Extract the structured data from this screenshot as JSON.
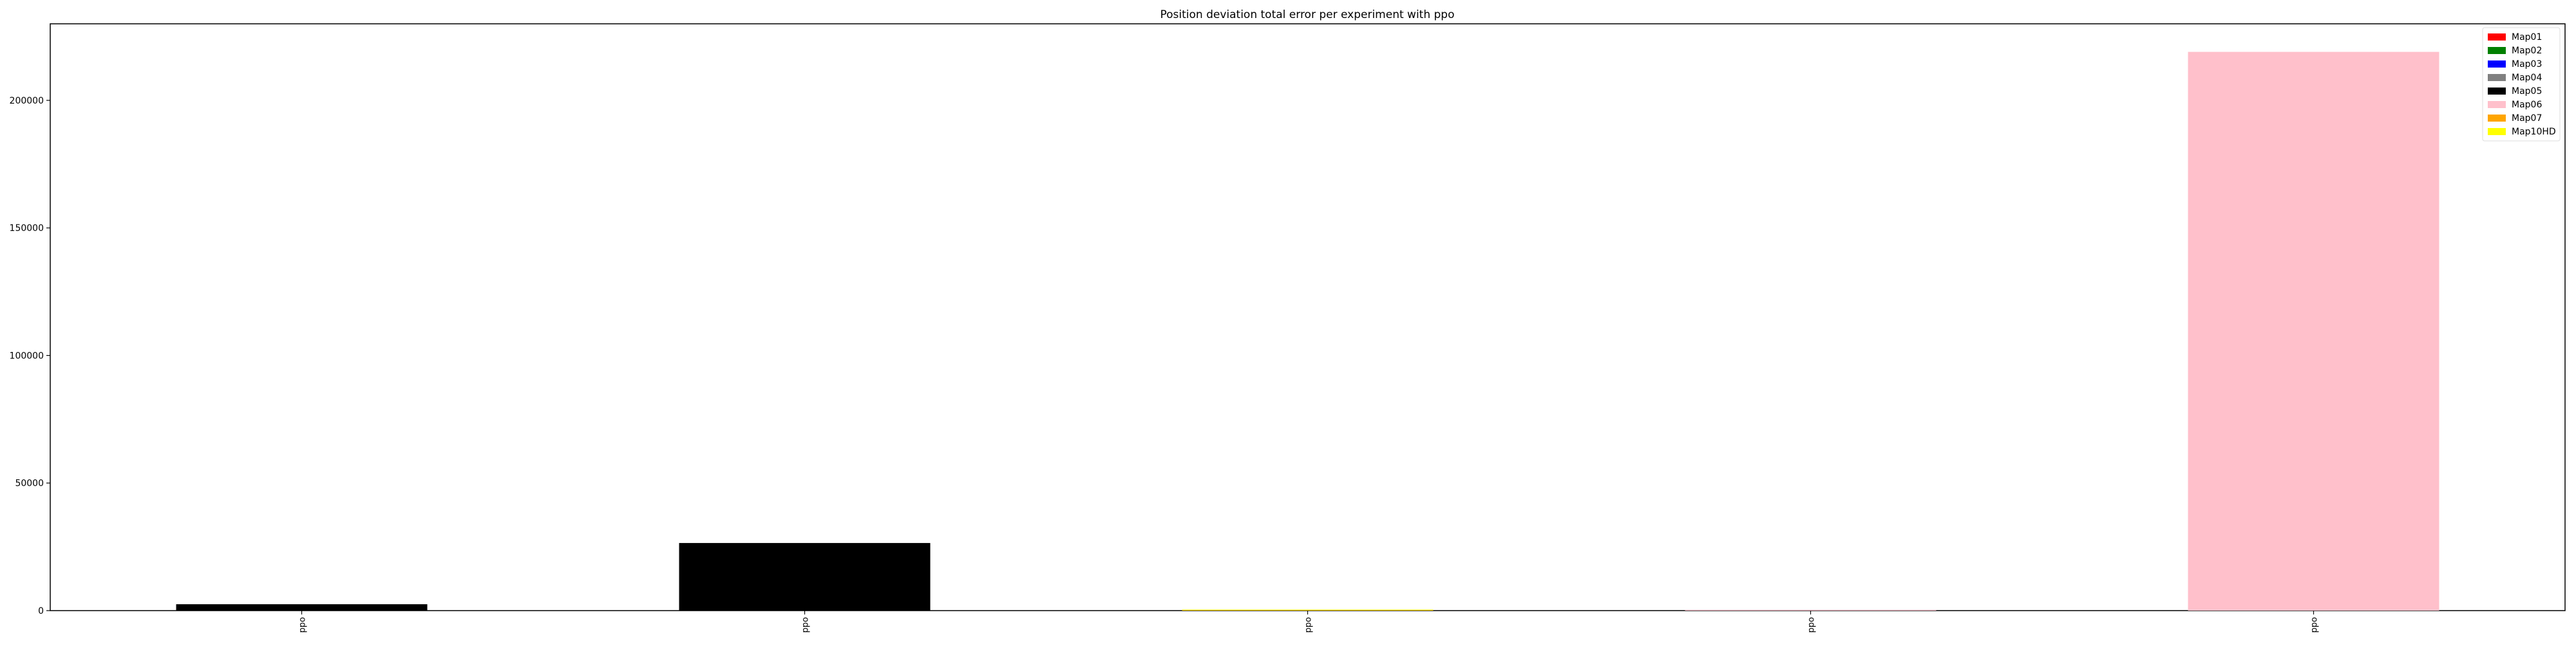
{
  "chart_data": {
    "type": "bar",
    "title": "Position deviation total error per experiment with ppo",
    "xlabel": "",
    "ylabel": "",
    "categories": [
      "ppo",
      "ppo",
      "ppo",
      "ppo",
      "ppo"
    ],
    "bars": [
      {
        "category_index": 0,
        "value": 2500,
        "color": "#000000"
      },
      {
        "category_index": 1,
        "value": 26500,
        "color": "#000000"
      },
      {
        "category_index": 2,
        "value": 300,
        "color": "#FFD700"
      },
      {
        "category_index": 3,
        "value": 150,
        "color": "#FFC0CB"
      },
      {
        "category_index": 4,
        "value": 219000,
        "color": "#FFC0CB"
      }
    ],
    "yticks": [
      0,
      50000,
      100000,
      150000,
      200000
    ],
    "ylim": [
      0,
      230000
    ],
    "grid": false,
    "legend_position": "top-right",
    "legend": [
      {
        "name": "Map01",
        "color": "#FF0000"
      },
      {
        "name": "Map02",
        "color": "#008000"
      },
      {
        "name": "Map03",
        "color": "#0000FF"
      },
      {
        "name": "Map04",
        "color": "#808080"
      },
      {
        "name": "Map05",
        "color": "#000000"
      },
      {
        "name": "Map06",
        "color": "#FFC0CB"
      },
      {
        "name": "Map07",
        "color": "#FFA500"
      },
      {
        "name": "Map10HD",
        "color": "#FFFF00"
      }
    ]
  }
}
